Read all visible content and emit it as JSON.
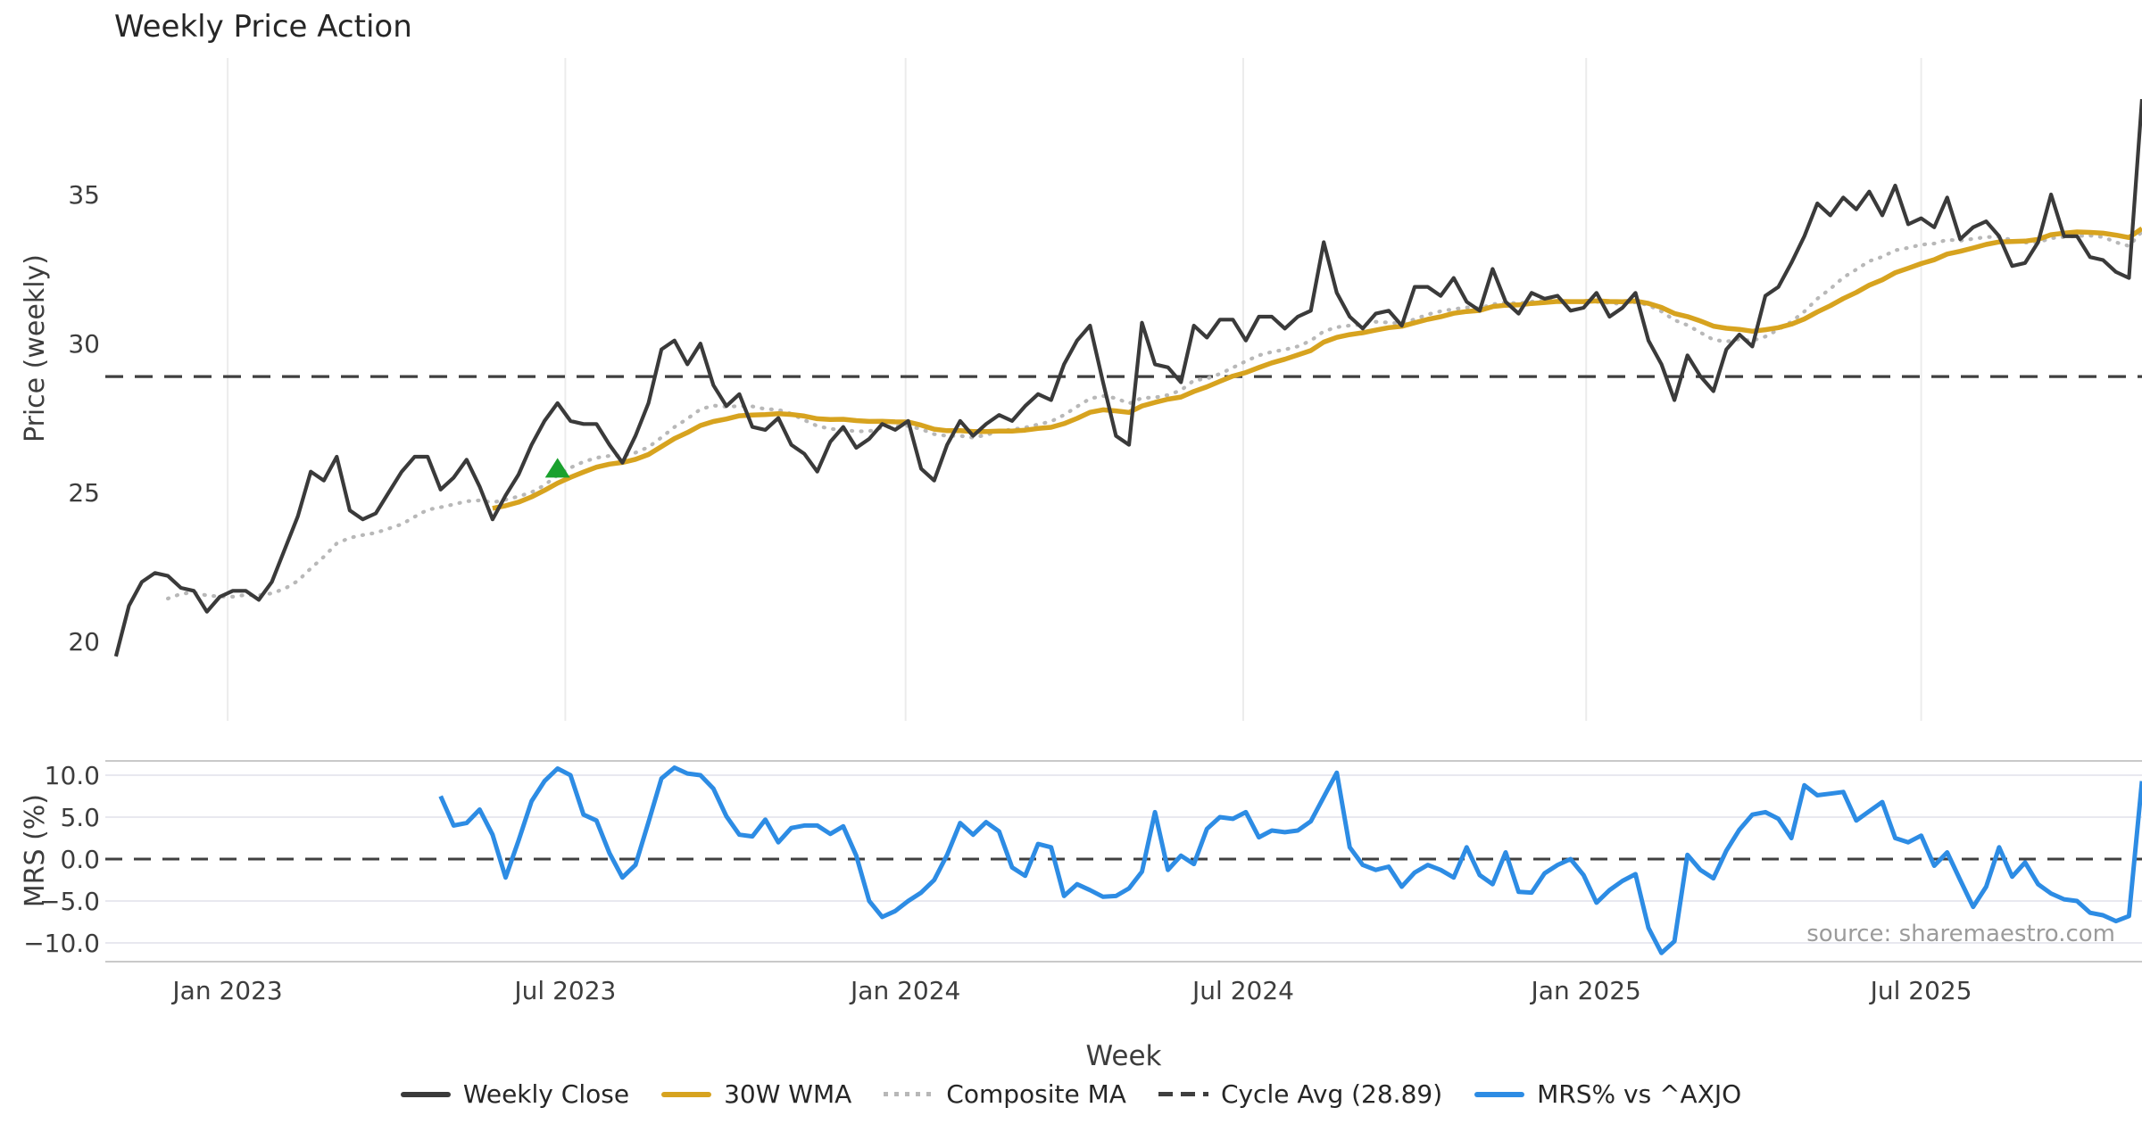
{
  "chart_data": {
    "type": "line",
    "title": "Weekly Price Action",
    "xlabel": "Week",
    "source_text": "source: sharemaestro.com",
    "x_axis": {
      "ticks": [
        {
          "label": "Jan 2023",
          "week": 8.6
        },
        {
          "label": "Jul 2023",
          "week": 34.6
        },
        {
          "label": "Jan 2024",
          "week": 60.8
        },
        {
          "label": "Jul 2024",
          "week": 86.8
        },
        {
          "label": "Jan 2025",
          "week": 113.2
        },
        {
          "label": "Jul 2025",
          "week": 139.0
        }
      ],
      "xlim_weeks": [
        -0.82,
        156.0
      ],
      "grid": "vertical-on-price-panel-only"
    },
    "price_panel": {
      "ylabel": "Price (weekly)",
      "ylim": [
        17.34,
        39.58
      ],
      "yticks": [
        {
          "v": 20,
          "label": "20"
        },
        {
          "v": 25,
          "label": "25"
        },
        {
          "v": 30,
          "label": "30"
        },
        {
          "v": 35,
          "label": "35"
        }
      ],
      "cycle_avg": 28.89,
      "weekly_close_start_week": 0,
      "weekly_close": [
        19.5,
        21.2,
        22.0,
        22.3,
        22.2,
        21.8,
        21.7,
        21.0,
        21.5,
        21.7,
        21.7,
        21.4,
        22.0,
        23.1,
        24.2,
        25.7,
        25.4,
        26.2,
        24.4,
        24.1,
        24.3,
        25.0,
        25.7,
        26.2,
        26.2,
        25.1,
        25.5,
        26.1,
        25.2,
        24.1,
        24.9,
        25.6,
        26.6,
        27.4,
        28.0,
        27.4,
        27.3,
        27.3,
        26.6,
        26.0,
        26.9,
        28.0,
        29.8,
        30.1,
        29.3,
        30.0,
        28.6,
        27.9,
        28.3,
        27.2,
        27.1,
        27.5,
        26.6,
        26.3,
        25.7,
        26.7,
        27.2,
        26.5,
        26.8,
        27.3,
        27.1,
        27.4,
        25.8,
        25.4,
        26.6,
        27.4,
        26.9,
        27.3,
        27.6,
        27.4,
        27.9,
        28.3,
        28.1,
        29.3,
        30.1,
        30.6,
        28.7,
        26.9,
        26.6,
        30.7,
        29.3,
        29.2,
        28.7,
        30.6,
        30.2,
        30.8,
        30.8,
        30.1,
        30.9,
        30.9,
        30.5,
        30.9,
        31.1,
        33.4,
        31.7,
        30.9,
        30.5,
        31.0,
        31.1,
        30.6,
        31.9,
        31.9,
        31.6,
        32.2,
        31.4,
        31.1,
        32.5,
        31.4,
        31.0,
        31.7,
        31.5,
        31.6,
        31.1,
        31.2,
        31.7,
        30.9,
        31.2,
        31.7,
        30.1,
        29.3,
        28.1,
        29.6,
        28.9,
        28.4,
        29.8,
        30.3,
        29.9,
        31.6,
        31.9,
        32.7,
        33.6,
        34.7,
        34.3,
        34.9,
        34.5,
        35.1,
        34.3,
        35.3,
        34.0,
        34.2,
        33.9,
        34.9,
        33.5,
        33.9,
        34.1,
        33.6,
        32.6,
        32.7,
        33.4,
        35.0,
        33.6,
        33.6,
        32.9,
        32.8,
        32.4,
        32.2,
        38.2
      ],
      "wma30": {
        "derived_from": "weekly_close",
        "method": "30-week linear-weighted MA",
        "plotted_from_week": 29
      },
      "composite_ma": {
        "derived_from": "weekly_close",
        "method": "mean of expanding SMA(5,10,20,30)",
        "plotted_from_week": 4
      },
      "signal_marker": {
        "shape": "triangle-up",
        "week": 34,
        "price": 25.8,
        "color": "#1aa12e"
      }
    },
    "mrs_panel": {
      "ylabel": "MRS (%)",
      "ylim": [
        -12.23,
        11.7
      ],
      "yticks": [
        {
          "v": 10,
          "label": "10.0"
        },
        {
          "v": 5,
          "label": "5.0"
        },
        {
          "v": 0,
          "label": "0.0"
        },
        {
          "v": -5,
          "label": "−5.0"
        },
        {
          "v": -10,
          "label": "−10.0"
        }
      ],
      "zero_line_dashed": true,
      "mrs_start_week": 25,
      "mrs": [
        7.5,
        4.0,
        4.3,
        5.9,
        2.9,
        -2.2,
        2.2,
        6.9,
        9.3,
        10.8,
        10.0,
        5.3,
        4.6,
        0.7,
        -2.2,
        -0.7,
        4.4,
        9.6,
        10.9,
        10.2,
        10.0,
        8.4,
        5.1,
        2.9,
        2.7,
        4.7,
        2.0,
        3.7,
        4.0,
        4.0,
        3.0,
        3.9,
        0.4,
        -5.0,
        -6.9,
        -6.2,
        -5.0,
        -4.0,
        -2.5,
        0.5,
        4.3,
        2.9,
        4.4,
        3.3,
        -1.0,
        -2.0,
        1.8,
        1.4,
        -4.4,
        -3.0,
        -3.7,
        -4.5,
        -4.4,
        -3.5,
        -1.5,
        5.6,
        -1.3,
        0.4,
        -0.6,
        3.6,
        5.0,
        4.8,
        5.6,
        2.6,
        3.4,
        3.2,
        3.4,
        4.5,
        7.4,
        10.3,
        1.4,
        -0.7,
        -1.3,
        -0.9,
        -3.3,
        -1.6,
        -0.7,
        -1.3,
        -2.2,
        1.4,
        -1.9,
        -3.0,
        0.8,
        -3.9,
        -4.0,
        -1.7,
        -0.7,
        0.0,
        -1.9,
        -5.2,
        -3.7,
        -2.6,
        -1.8,
        -8.2,
        -11.2,
        -9.8,
        0.5,
        -1.3,
        -2.3,
        1.0,
        3.5,
        5.3,
        5.6,
        4.8,
        2.5,
        8.8,
        7.6,
        7.8,
        8.0,
        4.6,
        5.7,
        6.8,
        2.5,
        2.0,
        2.8,
        -0.8,
        0.8,
        -2.5,
        -5.7,
        -3.3,
        1.4,
        -2.1,
        -0.4,
        -3.0,
        -4.1,
        -4.8,
        -5.0,
        -6.4,
        -6.7,
        -7.4,
        -6.8,
        9.3
      ]
    },
    "legend": [
      {
        "label": "Weekly Close",
        "swatch": "solid-close",
        "color": "#3a3a3a"
      },
      {
        "label": "30W WMA",
        "swatch": "solid-wma",
        "color": "#d7a31f"
      },
      {
        "label": "Composite MA",
        "swatch": "dotted",
        "color": "#b8b8b8"
      },
      {
        "label": "Cycle Avg (28.89)",
        "swatch": "dashed",
        "color": "#3f3f3f"
      },
      {
        "label": "MRS% vs ^AXJO",
        "swatch": "solid-mrs",
        "color": "#2d8ce4"
      }
    ],
    "colors": {
      "close": "#3a3a3a",
      "wma": "#d7a31f",
      "composite": "#b8b8b8",
      "cycle_dash": "#3f3f3f",
      "mrs": "#2d8ce4",
      "marker": "#1aa12e",
      "grid_vertical": "#ececec",
      "grid_mrs": "#e8e8ef",
      "spine": "#c9c9c9",
      "tick_text": "#3d3d3d"
    }
  }
}
